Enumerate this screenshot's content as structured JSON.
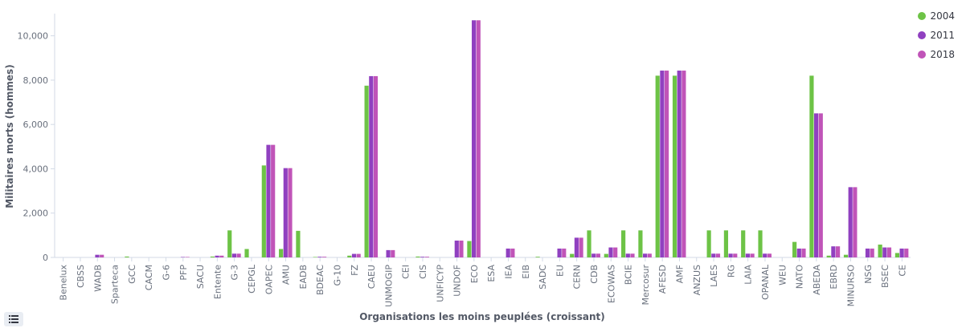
{
  "chart_data": {
    "type": "bar",
    "xlabel": "Organisations les moins peuplées (croissant)",
    "ylabel": "Militaires morts (hommes)",
    "ylim": [
      0,
      11000
    ],
    "yticks": [
      0,
      2000,
      4000,
      6000,
      8000,
      10000
    ],
    "ytick_labels": [
      "0",
      "2,000",
      "4,000",
      "6,000",
      "8,000",
      "10,000"
    ],
    "grid": false,
    "legend_position": "top-right",
    "categories": [
      "Benelux",
      "CBSS",
      "WADB",
      "Sparteca",
      "GCC",
      "CACM",
      "G-6",
      "PFP",
      "SACU",
      "Entente",
      "G-3",
      "CEPGL",
      "OAPEC",
      "AMU",
      "EADB",
      "BDEAC",
      "G-10",
      "FZ",
      "CAEU",
      "UNMOGIP",
      "CEI",
      "CIS",
      "UNFICYP",
      "UNDOF",
      "ECO",
      "ESA",
      "IEA",
      "EIB",
      "SADC",
      "EU",
      "CERN",
      "CDB",
      "ECOWAS",
      "BCIE",
      "Mercosur",
      "AFESD",
      "AMF",
      "ANZUS",
      "LAES",
      "RG",
      "LAIA",
      "OPANAL",
      "WEU",
      "NATO",
      "ABEDA",
      "EBRD",
      "MINURSO",
      "NSG",
      "BSEC",
      "CE"
    ],
    "series": [
      {
        "name": "2004",
        "color": "#6dc346",
        "values": [
          0,
          0,
          0,
          0,
          40,
          0,
          0,
          0,
          0,
          40,
          1220,
          380,
          4150,
          380,
          1200,
          20,
          0,
          80,
          7750,
          0,
          0,
          40,
          0,
          0,
          740,
          0,
          0,
          0,
          30,
          0,
          160,
          1220,
          160,
          1220,
          1220,
          8200,
          8200,
          0,
          1220,
          1220,
          1220,
          1220,
          0,
          700,
          8200,
          80,
          120,
          0,
          580,
          200
        ]
      },
      {
        "name": "2011",
        "color": "#9040c0",
        "values": [
          0,
          0,
          120,
          0,
          0,
          0,
          0,
          20,
          0,
          80,
          170,
          0,
          5080,
          4030,
          0,
          30,
          0,
          160,
          8180,
          330,
          0,
          30,
          0,
          760,
          10700,
          0,
          400,
          0,
          0,
          400,
          890,
          170,
          450,
          170,
          170,
          8430,
          8430,
          0,
          170,
          170,
          170,
          170,
          0,
          400,
          6500,
          500,
          3170,
          400,
          450,
          400
        ]
      },
      {
        "name": "2018",
        "color": "#c054b8",
        "values": [
          0,
          0,
          120,
          0,
          0,
          0,
          0,
          20,
          0,
          80,
          170,
          0,
          5080,
          4030,
          0,
          30,
          0,
          160,
          8180,
          330,
          0,
          30,
          0,
          760,
          10700,
          0,
          400,
          0,
          0,
          400,
          890,
          170,
          450,
          170,
          170,
          8430,
          8430,
          0,
          170,
          170,
          170,
          170,
          0,
          400,
          6500,
          500,
          3170,
          400,
          450,
          400
        ]
      }
    ]
  },
  "controls": {
    "legend_toggle_icon": "list-icon"
  }
}
